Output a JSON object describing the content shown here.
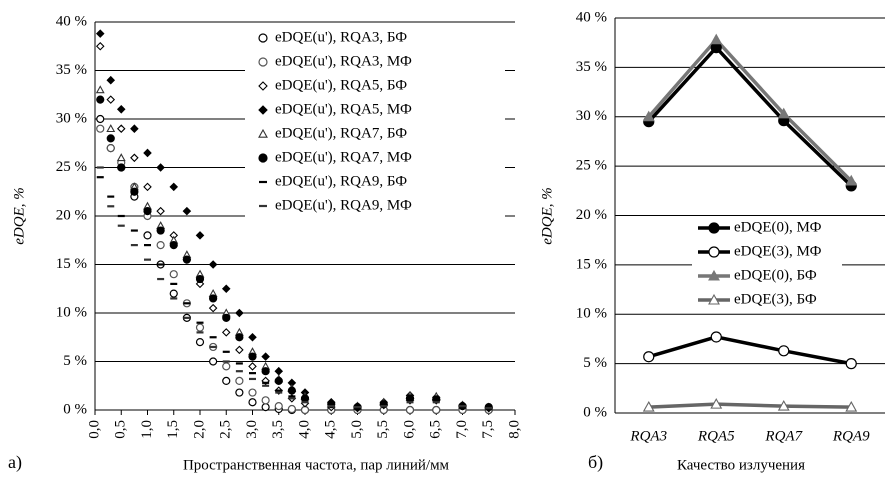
{
  "chart_data": [
    {
      "type": "scatter",
      "panel_label": "а)",
      "xlabel": "Пространственная частота, пар линий/мм",
      "ylabel": "eDQE,  %",
      "xlim": [
        0,
        8
      ],
      "ylim": [
        0,
        40
      ],
      "grid": true,
      "legend": "upper right",
      "xticks": [
        {
          "value": 0,
          "label": "0,0"
        },
        {
          "value": 0.5,
          "label": "0,5"
        },
        {
          "value": 1,
          "label": "1,0"
        },
        {
          "value": 1.5,
          "label": "1,5"
        },
        {
          "value": 2,
          "label": "2,0"
        },
        {
          "value": 2.5,
          "label": "2,5"
        },
        {
          "value": 3,
          "label": "3,0"
        },
        {
          "value": 3.5,
          "label": "3,5"
        },
        {
          "value": 4,
          "label": "4,0"
        },
        {
          "value": 4.5,
          "label": "4,5"
        },
        {
          "value": 5,
          "label": "5,0"
        },
        {
          "value": 5.5,
          "label": "5,5"
        },
        {
          "value": 6,
          "label": "6,0"
        },
        {
          "value": 6.5,
          "label": "6,5"
        },
        {
          "value": 7,
          "label": "7,0"
        },
        {
          "value": 7.5,
          "label": "7,5"
        },
        {
          "value": 8,
          "label": "8,0"
        }
      ],
      "yticks": [
        {
          "value": 0,
          "label": "0 %"
        },
        {
          "value": 5,
          "label": "5 %"
        },
        {
          "value": 10,
          "label": "10 %"
        },
        {
          "value": 15,
          "label": "15 %"
        },
        {
          "value": 20,
          "label": "20 %"
        },
        {
          "value": 25,
          "label": "25 %"
        },
        {
          "value": 30,
          "label": "30 %"
        },
        {
          "value": 35,
          "label": "35 %"
        },
        {
          "value": 40,
          "label": "40 %"
        }
      ],
      "x": [
        0.1,
        0.3,
        0.5,
        0.75,
        1.0,
        1.25,
        1.5,
        1.75,
        2.0,
        2.25,
        2.5,
        2.75,
        3.0,
        3.25,
        3.5,
        3.75,
        4.0,
        4.5,
        5.0,
        5.5,
        6.0,
        6.5,
        7.0,
        7.5
      ],
      "series": [
        {
          "name": "eDQE(u'), RQA3,  БФ",
          "marker": "circle-open",
          "color": "#000000",
          "values": [
            30,
            27,
            25,
            22,
            18,
            15,
            12,
            9.5,
            7,
            5,
            3,
            1.8,
            0.8,
            0.3,
            0.1,
            0,
            0,
            0,
            0,
            0,
            0,
            0,
            0,
            0
          ]
        },
        {
          "name": "eDQE(u'), RQA3,  МФ",
          "marker": "circle-open",
          "color": "#555555",
          "values": [
            29,
            27,
            25.5,
            23,
            20,
            17,
            14,
            11,
            8.5,
            6.5,
            4.5,
            3,
            1.8,
            1,
            0.4,
            0.1,
            0,
            0,
            0,
            0,
            0,
            0,
            0,
            0
          ]
        },
        {
          "name": "eDQE(u'), RQA5,  БФ",
          "marker": "diamond-open",
          "color": "#000000",
          "values": [
            37.5,
            32,
            29,
            26,
            23,
            20.5,
            18,
            15.5,
            13,
            10.5,
            8,
            6.2,
            4.5,
            3,
            2,
            1.2,
            0.7,
            0.3,
            0.2,
            0.8,
            1.5,
            1.3,
            0.5,
            0.2
          ]
        },
        {
          "name": "eDQE(u'), RQA5,  МФ",
          "marker": "diamond",
          "color": "#000000",
          "values": [
            38.8,
            34,
            31,
            29,
            26.5,
            25,
            23,
            20.5,
            18,
            15,
            12.5,
            10,
            7.5,
            5.5,
            4,
            2.8,
            1.8,
            0.8,
            0.4,
            0.5,
            1.0,
            1.0,
            0.4,
            0.2
          ]
        },
        {
          "name": "eDQE(u'), RQA7,  БФ",
          "marker": "triangle-open",
          "color": "#333333",
          "values": [
            33,
            29,
            26,
            23,
            21,
            19,
            17.5,
            16,
            14,
            12,
            10,
            8,
            6,
            4.5,
            3.2,
            2.2,
            1.4,
            0.6,
            0.4,
            0.8,
            1.5,
            1.4,
            0.5,
            0.3
          ]
        },
        {
          "name": "eDQE(u'), RQA7,  МФ",
          "marker": "circle",
          "color": "#000000",
          "values": [
            32,
            28,
            25,
            22.5,
            20.5,
            18.5,
            17,
            15.5,
            13.5,
            11.5,
            9.5,
            7.5,
            5.5,
            4,
            3,
            2,
            1.2,
            0.6,
            0.3,
            0.6,
            1.2,
            1.1,
            0.4,
            0.3
          ]
        },
        {
          "name": "eDQE(u'), RQA9,  БФ",
          "marker": "dash",
          "color": "#000000",
          "values": [
            24,
            22,
            20,
            18.5,
            17,
            15,
            13,
            11,
            9,
            7.5,
            6,
            4.8,
            3.8,
            2.8,
            2,
            1.4,
            0.9,
            0.4,
            0.3,
            0.5,
            1.0,
            0.9,
            0.4,
            0.3
          ]
        },
        {
          "name": "eDQE(u'), RQA9,  МФ",
          "marker": "dash",
          "color": "#333333",
          "values": [
            25,
            21,
            19,
            17,
            15.5,
            13.5,
            11.5,
            9.5,
            8,
            6.5,
            5,
            4,
            3.2,
            2.5,
            1.8,
            1.2,
            0.8,
            0.4,
            0.3,
            0.4,
            0.8,
            0.8,
            0.4,
            0.2
          ]
        }
      ]
    },
    {
      "type": "line",
      "panel_label": "б)",
      "xlabel": "Качество излучения",
      "ylabel": "eDQE, %",
      "ylim": [
        0,
        40
      ],
      "grid": true,
      "legend": "center",
      "yticks": [
        {
          "value": 0,
          "label": "0 %"
        },
        {
          "value": 5,
          "label": "5 %"
        },
        {
          "value": 10,
          "label": "10 %"
        },
        {
          "value": 15,
          "label": "15 %"
        },
        {
          "value": 20,
          "label": "20 %"
        },
        {
          "value": 25,
          "label": "25 %"
        },
        {
          "value": 30,
          "label": "30 %"
        },
        {
          "value": 35,
          "label": "35 %"
        },
        {
          "value": 40,
          "label": "40 %"
        }
      ],
      "categories": [
        "RQA3",
        "RQA5",
        "RQA7",
        "RQA9"
      ],
      "series": [
        {
          "name": "eDQE(0), МФ",
          "marker": "circle",
          "color": "#000000",
          "values": [
            29.5,
            37,
            29.6,
            23
          ]
        },
        {
          "name": "eDQE(3), МФ",
          "marker": "circle-open",
          "color": "#000000",
          "values": [
            5.7,
            7.7,
            6.3,
            5.0
          ]
        },
        {
          "name": "eDQE(0), БФ",
          "marker": "triangle",
          "color": "#777777",
          "values": [
            30,
            37.8,
            30.3,
            23.5
          ]
        },
        {
          "name": "eDQE(3), БФ",
          "marker": "triangle-open",
          "color": "#666666",
          "values": [
            0.6,
            0.9,
            0.7,
            0.6
          ]
        }
      ]
    }
  ]
}
